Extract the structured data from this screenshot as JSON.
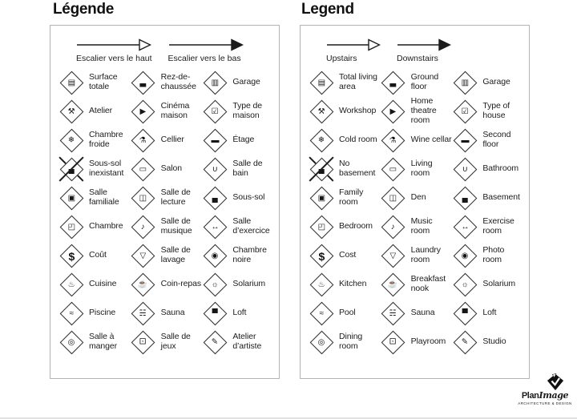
{
  "colors": {
    "background": "#ffffff",
    "text": "#1c1c1c",
    "panel_border": "#b3b3b3",
    "icon_stroke": "#2e2e2e"
  },
  "logo": {
    "brand_plan": "Plan",
    "brand_image": "Image",
    "tagline": "ARCHITECTURE & DESIGN"
  },
  "panels": [
    {
      "id": "fr",
      "title": "Légende",
      "arrows": [
        {
          "name": "upstairs-arrow",
          "icon": "open-arrow-icon",
          "style": "open",
          "label": "Escalier vers le haut"
        },
        {
          "name": "downstairs-arrow",
          "icon": "solid-arrow-icon",
          "style": "solid",
          "label": "Escalier vers le bas"
        }
      ],
      "items": [
        {
          "icon": "total-living-area",
          "glyph": "▤",
          "label": "Surface totale"
        },
        {
          "icon": "ground-floor",
          "glyph": "▃",
          "label": "Rez-de-chaussée"
        },
        {
          "icon": "garage",
          "glyph": "▥",
          "label": "Garage"
        },
        {
          "icon": "workshop",
          "glyph": "⚒",
          "label": "Atelier"
        },
        {
          "icon": "home-theatre",
          "glyph": "▶",
          "label": "Cinéma maison"
        },
        {
          "icon": "type-of-house",
          "glyph": "☑",
          "label": "Type de maison"
        },
        {
          "icon": "cold-room",
          "glyph": "❄",
          "label": "Chambre froide"
        },
        {
          "icon": "wine-cellar",
          "glyph": "⚗",
          "label": "Cellier"
        },
        {
          "icon": "second-floor",
          "glyph": "▬",
          "label": "Étage"
        },
        {
          "icon": "no-basement",
          "glyph": "▄",
          "label": "Sous-sol inexistant",
          "crossed": true
        },
        {
          "icon": "living-room",
          "glyph": "▭",
          "label": "Salon"
        },
        {
          "icon": "bathroom",
          "glyph": "∪",
          "label": "Salle de bain"
        },
        {
          "icon": "family-room",
          "glyph": "▣",
          "label": "Salle familiale"
        },
        {
          "icon": "den",
          "glyph": "◫",
          "label": "Salle de lecture"
        },
        {
          "icon": "basement",
          "glyph": "▄",
          "label": "Sous-sol"
        },
        {
          "icon": "bedroom",
          "glyph": "◰",
          "label": "Chambre"
        },
        {
          "icon": "music-room",
          "glyph": "♪",
          "label": "Salle de musique"
        },
        {
          "icon": "exercise-room",
          "glyph": "↔",
          "label": "Salle d’exercice"
        },
        {
          "icon": "cost",
          "glyph": "$",
          "label": "Coût"
        },
        {
          "icon": "laundry-room",
          "glyph": "▽",
          "label": "Salle de lavage"
        },
        {
          "icon": "photo-room",
          "glyph": "◉",
          "label": "Chambre noire"
        },
        {
          "icon": "kitchen",
          "glyph": "♨",
          "label": "Cuisine"
        },
        {
          "icon": "breakfast-nook",
          "glyph": "☕",
          "label": "Coin-repas"
        },
        {
          "icon": "solarium",
          "glyph": "☼",
          "label": "Solarium"
        },
        {
          "icon": "pool",
          "glyph": "≈",
          "label": "Piscine"
        },
        {
          "icon": "sauna",
          "glyph": "☵",
          "label": "Sauna"
        },
        {
          "icon": "loft",
          "glyph": "▀",
          "label": "Loft"
        },
        {
          "icon": "dining-room",
          "glyph": "◎",
          "label": "Salle à manger"
        },
        {
          "icon": "playroom",
          "glyph": "⚀",
          "label": "Salle de jeux"
        },
        {
          "icon": "studio",
          "glyph": "✎",
          "label": "Atelier d’artiste"
        }
      ]
    },
    {
      "id": "en",
      "title": "Legend",
      "arrows": [
        {
          "name": "upstairs-arrow",
          "icon": "open-arrow-icon",
          "style": "open",
          "label": "Upstairs"
        },
        {
          "name": "downstairs-arrow",
          "icon": "solid-arrow-icon",
          "style": "solid",
          "label": "Downstairs"
        }
      ],
      "items": [
        {
          "icon": "total-living-area",
          "glyph": "▤",
          "label": "Total living area"
        },
        {
          "icon": "ground-floor",
          "glyph": "▃",
          "label": "Ground floor"
        },
        {
          "icon": "garage",
          "glyph": "▥",
          "label": "Garage"
        },
        {
          "icon": "workshop",
          "glyph": "⚒",
          "label": "Workshop"
        },
        {
          "icon": "home-theatre",
          "glyph": "▶",
          "label": "Home theatre room"
        },
        {
          "icon": "type-of-house",
          "glyph": "☑",
          "label": "Type of house"
        },
        {
          "icon": "cold-room",
          "glyph": "❄",
          "label": "Cold room"
        },
        {
          "icon": "wine-cellar",
          "glyph": "⚗",
          "label": "Wine cellar"
        },
        {
          "icon": "second-floor",
          "glyph": "▬",
          "label": "Second floor"
        },
        {
          "icon": "no-basement",
          "glyph": "▄",
          "label": "No basement",
          "crossed": true
        },
        {
          "icon": "living-room",
          "glyph": "▭",
          "label": "Living room"
        },
        {
          "icon": "bathroom",
          "glyph": "∪",
          "label": "Bathroom"
        },
        {
          "icon": "family-room",
          "glyph": "▣",
          "label": "Family room"
        },
        {
          "icon": "den",
          "glyph": "◫",
          "label": "Den"
        },
        {
          "icon": "basement",
          "glyph": "▄",
          "label": "Basement"
        },
        {
          "icon": "bedroom",
          "glyph": "◰",
          "label": "Bedroom"
        },
        {
          "icon": "music-room",
          "glyph": "♪",
          "label": "Music room"
        },
        {
          "icon": "exercise-room",
          "glyph": "↔",
          "label": "Exercise room"
        },
        {
          "icon": "cost",
          "glyph": "$",
          "label": "Cost"
        },
        {
          "icon": "laundry-room",
          "glyph": "▽",
          "label": "Laundry room"
        },
        {
          "icon": "photo-room",
          "glyph": "◉",
          "label": "Photo room"
        },
        {
          "icon": "kitchen",
          "glyph": "♨",
          "label": "Kitchen"
        },
        {
          "icon": "breakfast-nook",
          "glyph": "☕",
          "label": "Breakfast nook"
        },
        {
          "icon": "solarium",
          "glyph": "☼",
          "label": "Solarium"
        },
        {
          "icon": "pool",
          "glyph": "≈",
          "label": "Pool"
        },
        {
          "icon": "sauna",
          "glyph": "☵",
          "label": "Sauna"
        },
        {
          "icon": "loft",
          "glyph": "▀",
          "label": "Loft"
        },
        {
          "icon": "dining-room",
          "glyph": "◎",
          "label": "Dining room"
        },
        {
          "icon": "playroom",
          "glyph": "⚀",
          "label": "Playroom"
        },
        {
          "icon": "studio",
          "glyph": "✎",
          "label": "Studio"
        }
      ]
    }
  ]
}
